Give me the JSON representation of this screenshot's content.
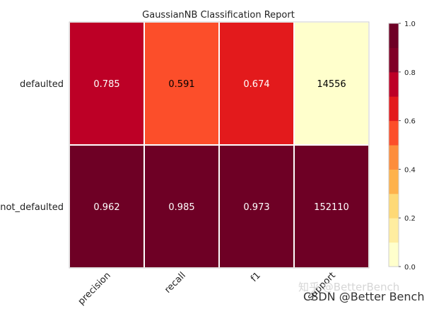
{
  "chart_data": {
    "type": "heatmap",
    "title": "GaussianNB Classification Report",
    "columns": [
      "precision",
      "recall",
      "f1",
      "support"
    ],
    "rows": [
      "defaulted",
      "not_defaulted"
    ],
    "values": [
      [
        0.785,
        0.591,
        0.674,
        14556
      ],
      [
        0.962,
        0.985,
        0.973,
        152110
      ]
    ],
    "cell_labels": [
      [
        "0.785",
        "0.591",
        "0.674",
        "14556"
      ],
      [
        "0.962",
        "0.985",
        "0.973",
        "152110"
      ]
    ],
    "color_fraction": [
      [
        0.785,
        0.591,
        0.674,
        0.096
      ],
      [
        0.962,
        0.985,
        0.973,
        1.0
      ]
    ],
    "colorbar": {
      "range": [
        0.0,
        1.0
      ],
      "ticks": [
        "0.0",
        "0.2",
        "0.4",
        "0.6",
        "0.8",
        "1.0"
      ],
      "colormap": "YlOrRd",
      "levels": 10
    },
    "grid": false,
    "colors": [
      "#ffffcc",
      "#ffeda0",
      "#fed976",
      "#feb24c",
      "#fd8d3c",
      "#fc4e2a",
      "#e31a1c",
      "#bd0026",
      "#800026",
      "#6e0025"
    ]
  },
  "watermark": {
    "faint": "知乎 @BetterBench",
    "main": "CSDN @Better Bench"
  }
}
